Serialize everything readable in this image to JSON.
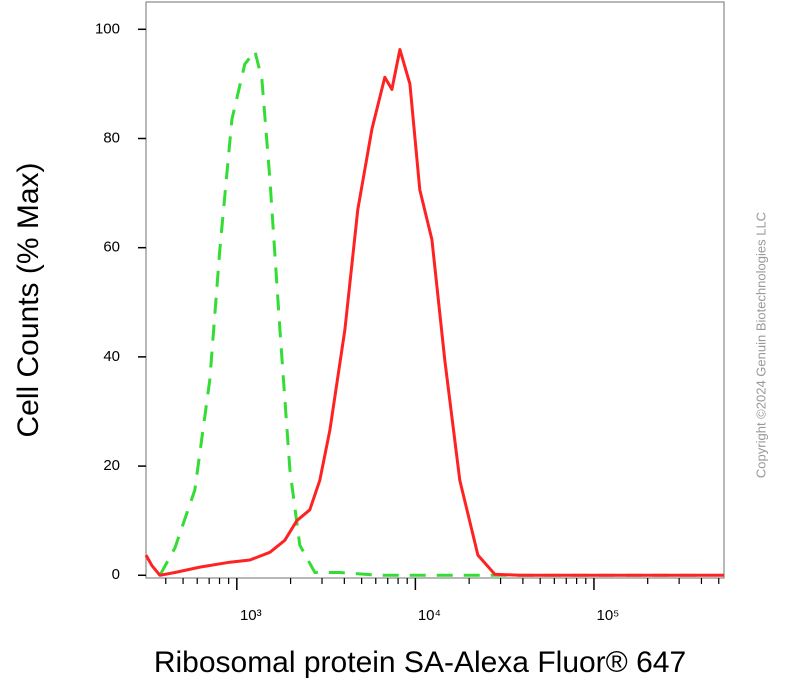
{
  "chart_data": {
    "type": "line",
    "x_label": "Ribosomal protein SA-Alexa Fluor® 647",
    "y_label": "Cell Counts (% Max)",
    "copyright": "Copyright ©2024 Genuin Biotechnologies LLC",
    "xscale": "log",
    "xlim": [
      310,
      535000
    ],
    "ylim": [
      -0.5,
      105
    ],
    "xticks": [
      {
        "value": 1000,
        "label": "10³"
      },
      {
        "value": 10000,
        "label": "10⁴"
      },
      {
        "value": 100000,
        "label": "10⁵"
      }
    ],
    "xminorticks": [
      400,
      500,
      600,
      700,
      800,
      900,
      2000,
      3000,
      4000,
      5000,
      6000,
      7000,
      8000,
      9000,
      20000,
      30000,
      40000,
      50000,
      60000,
      70000,
      80000,
      90000,
      200000,
      300000,
      400000,
      500000
    ],
    "yticks": [
      0,
      20,
      40,
      60,
      80,
      100
    ],
    "series": [
      {
        "color": "#33dd33",
        "dash": true,
        "x": [
          371,
          450,
          582,
          706,
          803,
          938,
          1109,
          1262,
          1381,
          1531,
          1742,
          1982,
          2254,
          2736,
          3776,
          6324,
          29700,
          392000
        ],
        "values": [
          0,
          5,
          15.6,
          35.8,
          59.6,
          83.5,
          93.6,
          96,
          90.8,
          72.5,
          45,
          19.3,
          5.5,
          0.5,
          0.5,
          0,
          0,
          0
        ]
      },
      {
        "color": "#ff2222",
        "dash": false,
        "x": [
          310,
          334,
          371,
          450,
          621,
          914,
          1183,
          1531,
          1857,
          2168,
          2564,
          2917,
          3319,
          4028,
          4762,
          5705,
          6745,
          7387,
          8190,
          9313,
          10590,
          12370,
          14620,
          17740,
          22390,
          27860,
          38470,
          535000
        ],
        "values": [
          3.7,
          1.8,
          0,
          0.5,
          1.5,
          2.4,
          2.8,
          4.2,
          6.4,
          10,
          12,
          17.4,
          26.6,
          45,
          67,
          81.7,
          91.2,
          89,
          96.3,
          90,
          70.6,
          61.5,
          39.4,
          17.4,
          3.7,
          0.2,
          0,
          0
        ]
      }
    ]
  }
}
